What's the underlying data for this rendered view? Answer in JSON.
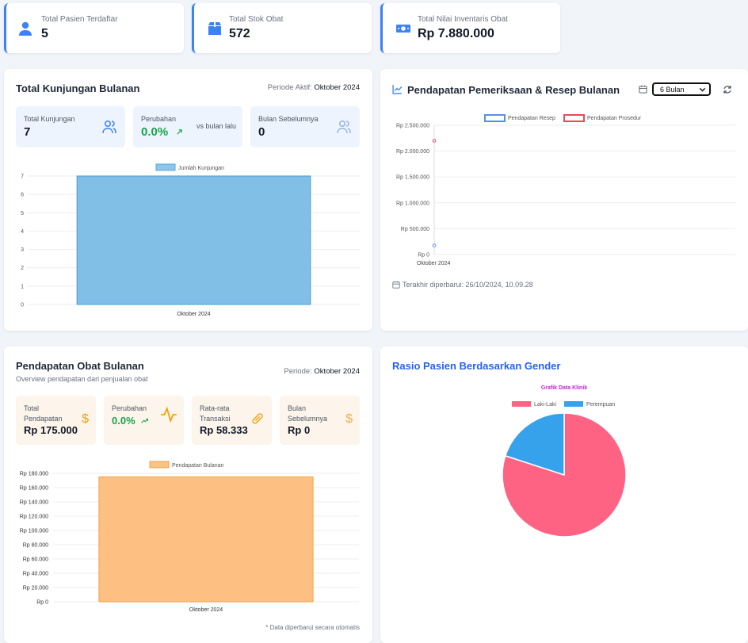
{
  "stats": [
    {
      "label": "Total Pasien Terdaftar",
      "value": "5",
      "icon": "user-icon"
    },
    {
      "label": "Total Stok Obat",
      "value": "572",
      "icon": "box-icon"
    },
    {
      "label": "Total Nilai Inventaris Obat",
      "value": "Rp 7.880.000",
      "icon": "money-icon"
    }
  ],
  "kunjungan": {
    "title": "Total Kunjungan Bulanan",
    "period_label": "Periode Aktif:",
    "period_value": "Oktober 2024",
    "mini": [
      {
        "label": "Total Kunjungan",
        "value": "7"
      },
      {
        "label": "Perubahan",
        "value": "0.0%",
        "note": "vs bulan lalu"
      },
      {
        "label": "Bulan Sebelumnya",
        "value": "0"
      }
    ]
  },
  "pendapatan": {
    "title": "Pendapatan Pemeriksaan & Resep Bulanan",
    "range_select": "6 Bulan",
    "updated": "Terakhir diperbarui: 26/10/2024, 10.09.28"
  },
  "obat": {
    "title": "Pendapatan Obat Bulanan",
    "subtitle": "Overview pendapatan dari penjualan obat",
    "period_label": "Periode:",
    "period_value": "Oktober 2024",
    "mini": [
      {
        "label1": "Total",
        "label2": "Pendapatan",
        "value": "Rp 175.000"
      },
      {
        "label1": "Perubahan",
        "label2": "",
        "value": "0.0%"
      },
      {
        "label1": "Rata-rata",
        "label2": "Transaksi",
        "value": "Rp 58.333"
      },
      {
        "label1": "Bulan",
        "label2": "Sebelumnya",
        "value": "Rp 0"
      }
    ],
    "footnote": "* Data diperbarui secara otomatis"
  },
  "gender": {
    "title": "Rasio Pasien Berdasarkan Gender"
  },
  "colors": {
    "blue": "#3b82f6",
    "green": "#16a34a",
    "orange": "#f59e0b",
    "pink": "#ff6384",
    "sky": "#36a2eb"
  },
  "chart_data": [
    {
      "type": "bar",
      "categories": [
        "Oktober 2024"
      ],
      "series": [
        {
          "name": "Jumlah Kunjungan",
          "values": [
            7
          ]
        }
      ],
      "ylim": [
        0,
        7
      ],
      "yticks": [
        "0",
        "1",
        "2",
        "3",
        "4",
        "5",
        "6",
        "7"
      ]
    },
    {
      "type": "scatter",
      "categories": [
        "Oktober 2024"
      ],
      "series": [
        {
          "name": "Pendapatan Resep",
          "values": [
            175000
          ]
        },
        {
          "name": "Pendapatan Prosedur",
          "values": [
            2200000
          ]
        }
      ],
      "ylim": [
        0,
        2500000
      ],
      "yticks": [
        "Rp 0",
        "Rp 500.000",
        "Rp 1.000.000",
        "Rp 1.500.000",
        "Rp 2.000.000",
        "Rp 2.500.000"
      ]
    },
    {
      "type": "bar",
      "categories": [
        "Oktober 2024"
      ],
      "series": [
        {
          "name": "Pendapatan Bulanan",
          "values": [
            175000
          ]
        }
      ],
      "ylim": [
        0,
        180000
      ],
      "yticks": [
        "Rp 0",
        "Rp 20.000",
        "Rp 40.000",
        "Rp 60.000",
        "Rp 80.000",
        "Rp 100.000",
        "Rp 120.000",
        "Rp 140.000",
        "Rp 160.000",
        "Rp 180.000"
      ]
    },
    {
      "type": "pie",
      "title": "Grafik Data Klinik",
      "categories": [
        "Laki-Laki",
        "Perempuan"
      ],
      "values": [
        4,
        1
      ],
      "colors": [
        "#ff6384",
        "#36a2eb"
      ]
    }
  ]
}
